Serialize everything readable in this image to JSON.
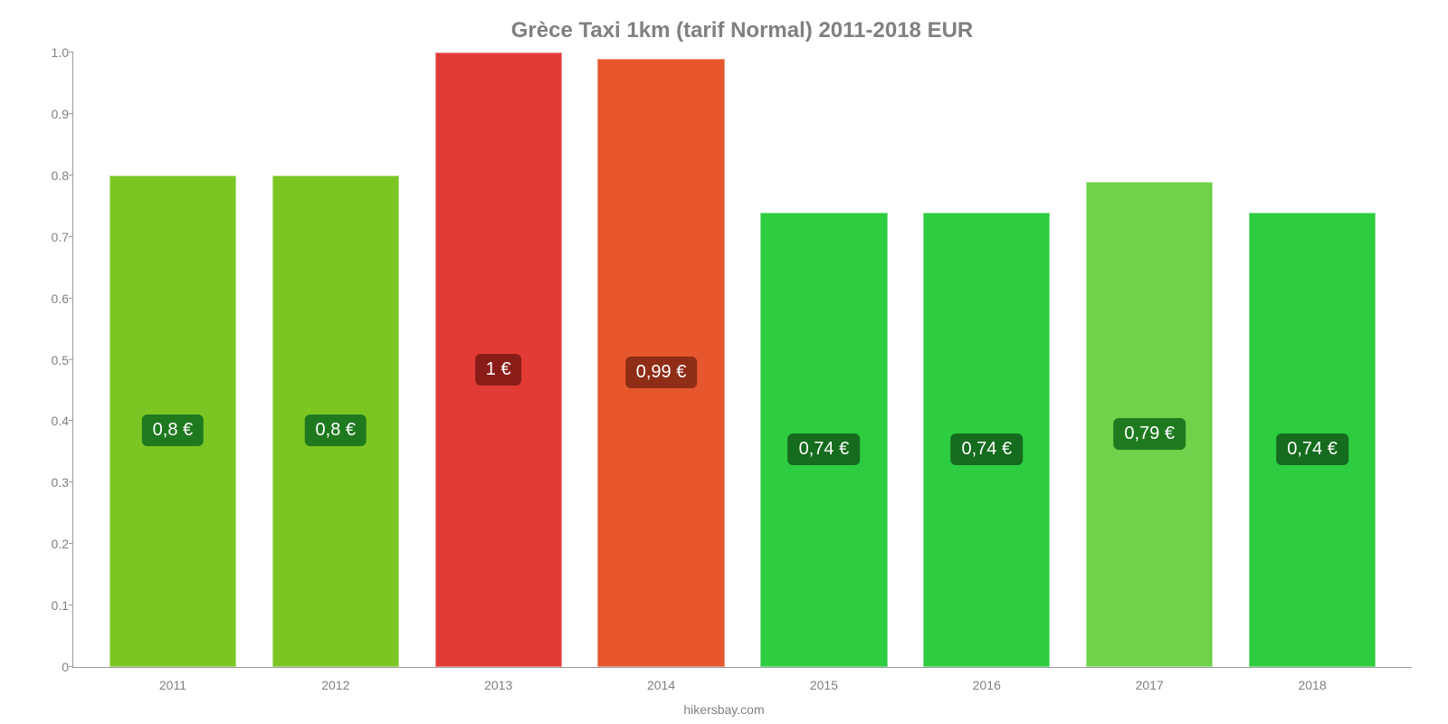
{
  "chart": {
    "type": "bar",
    "title": "Grèce Taxi 1km (tarif Normal) 2011-2018 EUR",
    "title_color": "#808080",
    "title_fontsize": 24,
    "background_color": "#ffffff",
    "axis_color": "#999999",
    "tick_label_color": "#808080",
    "tick_fontsize": 14,
    "ylim": [
      0,
      1.0
    ],
    "ytick_step": 0.1,
    "yticks": [
      "0",
      "0.1",
      "0.2",
      "0.3",
      "0.4",
      "0.5",
      "0.6",
      "0.7",
      "0.8",
      "0.9",
      "1.0"
    ],
    "bar_width_ratio": 0.78,
    "data": [
      {
        "category": "2011",
        "value": 0.8,
        "label": "0,8 €",
        "bar_color": "#7cc623",
        "label_bg": "#1f7a1f"
      },
      {
        "category": "2012",
        "value": 0.8,
        "label": "0,8 €",
        "bar_color": "#7cc623",
        "label_bg": "#1f7a1f"
      },
      {
        "category": "2013",
        "value": 1.0,
        "label": "1 €",
        "bar_color": "#e23b36",
        "label_bg": "#8a1c18"
      },
      {
        "category": "2014",
        "value": 0.99,
        "label": "0,99 €",
        "bar_color": "#e6572e",
        "label_bg": "#8f2d16"
      },
      {
        "category": "2015",
        "value": 0.74,
        "label": "0,74 €",
        "bar_color": "#2ecc40",
        "label_bg": "#156b1e"
      },
      {
        "category": "2016",
        "value": 0.74,
        "label": "0,74 €",
        "bar_color": "#2ecc40",
        "label_bg": "#156b1e"
      },
      {
        "category": "2017",
        "value": 0.79,
        "label": "0,79 €",
        "bar_color": "#6fd24a",
        "label_bg": "#1f7a1f"
      },
      {
        "category": "2018",
        "value": 0.74,
        "label": "0,74 €",
        "bar_color": "#2ecc40",
        "label_bg": "#156b1e"
      }
    ],
    "value_label_fontsize": 20,
    "value_label_color": "#ffffff",
    "source": "hikersbay.com",
    "source_color": "#808080",
    "source_fontsize": 14
  }
}
